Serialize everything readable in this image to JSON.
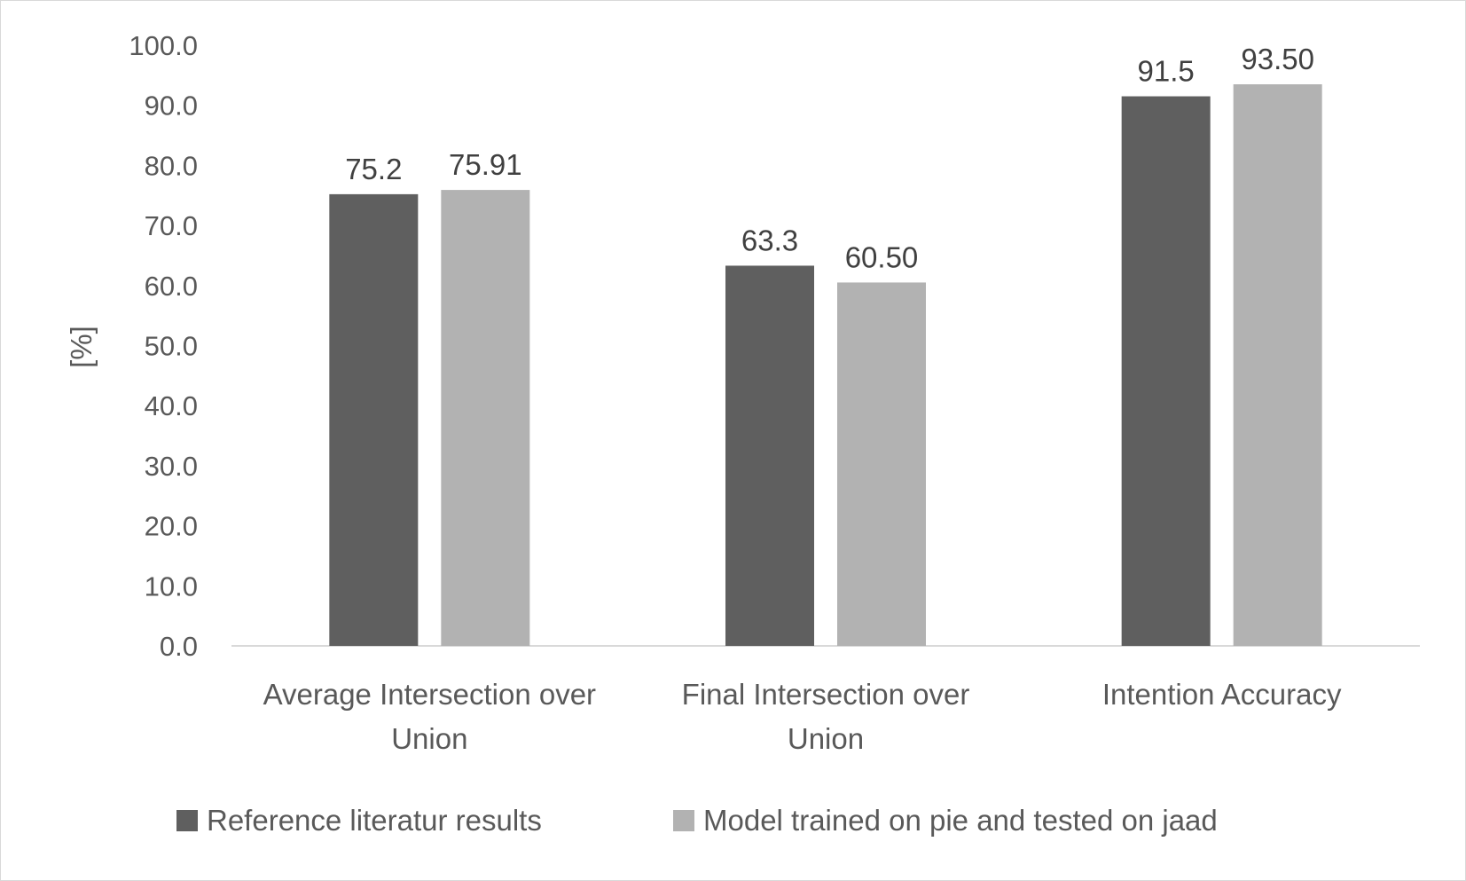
{
  "chart_data": {
    "type": "bar",
    "title": "",
    "xlabel": "",
    "ylabel": "[%]",
    "ylim": [
      0,
      100
    ],
    "yticks": [
      "0.0",
      "10.0",
      "20.0",
      "30.0",
      "40.0",
      "50.0",
      "60.0",
      "70.0",
      "80.0",
      "90.0",
      "100.0"
    ],
    "categories": [
      [
        "Average Intersection over",
        "Union"
      ],
      [
        "Final Intersection over",
        "Union"
      ],
      [
        "Intention Accuracy"
      ]
    ],
    "series": [
      {
        "name": "Reference literatur results",
        "color": "#5f5f5f",
        "values": [
          75.2,
          63.3,
          91.5
        ],
        "labels": [
          "75.2",
          "63.3",
          "91.5"
        ]
      },
      {
        "name": "Model trained on pie and tested on jaad",
        "color": "#b2b2b2",
        "values": [
          75.91,
          60.5,
          93.5
        ],
        "labels": [
          "75.91",
          "60.50",
          "93.50"
        ]
      }
    ],
    "grid": false,
    "legend_position": "bottom"
  }
}
